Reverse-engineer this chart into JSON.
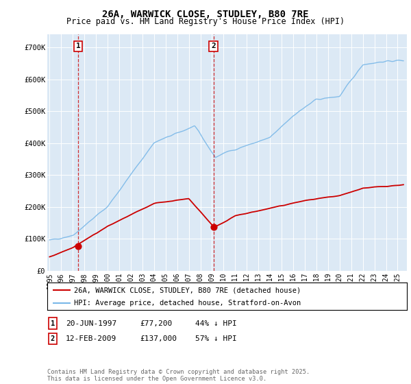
{
  "title_line1": "26A, WARWICK CLOSE, STUDLEY, B80 7RE",
  "title_line2": "Price paid vs. HM Land Registry's House Price Index (HPI)",
  "yticks": [
    0,
    100000,
    200000,
    300000,
    400000,
    500000,
    600000,
    700000
  ],
  "ytick_labels": [
    "£0",
    "£100K",
    "£200K",
    "£300K",
    "£400K",
    "£500K",
    "£600K",
    "£700K"
  ],
  "xlim_start": 1994.8,
  "xlim_end": 2025.8,
  "ylim": [
    0,
    740000
  ],
  "background_color": "#dce9f5",
  "plot_bg_color": "#dce9f5",
  "grid_color": "#ffffff",
  "hpi_color": "#7ab8e8",
  "price_color": "#cc0000",
  "dashed_color": "#cc0000",
  "legend_label_price": "26A, WARWICK CLOSE, STUDLEY, B80 7RE (detached house)",
  "legend_label_hpi": "HPI: Average price, detached house, Stratford-on-Avon",
  "purchase1_year": 1997.46,
  "purchase1_price": 77200,
  "purchase1_label": "1",
  "purchase2_year": 2009.12,
  "purchase2_price": 137000,
  "purchase2_label": "2",
  "copyright": "Contains HM Land Registry data © Crown copyright and database right 2025.\nThis data is licensed under the Open Government Licence v3.0.",
  "xtick_years": [
    1995,
    1996,
    1997,
    1998,
    1999,
    2000,
    2001,
    2002,
    2003,
    2004,
    2005,
    2006,
    2007,
    2008,
    2009,
    2010,
    2011,
    2012,
    2013,
    2014,
    2015,
    2016,
    2017,
    2018,
    2019,
    2020,
    2021,
    2022,
    2023,
    2024,
    2025
  ]
}
